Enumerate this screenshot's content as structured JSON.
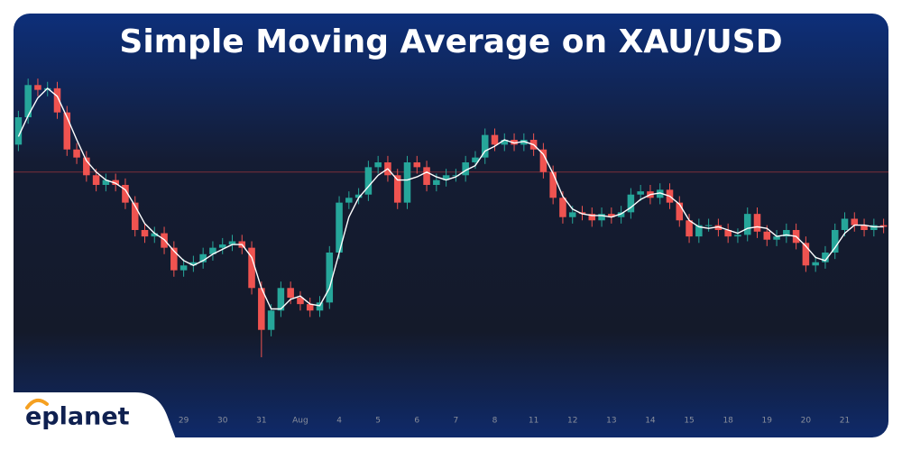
{
  "chart_data": {
    "type": "candlestick",
    "title": "Simple Moving Average on XAU/USD",
    "logo": "eplanet",
    "categories": [
      null,
      null,
      null,
      null,
      null,
      null,
      null,
      null,
      null,
      null,
      null,
      null,
      null,
      null,
      null,
      null,
      null,
      "29",
      null,
      null,
      null,
      "30",
      null,
      null,
      null,
      "31",
      null,
      null,
      null,
      "Aug",
      null,
      null,
      null,
      "4",
      null,
      null,
      null,
      "5",
      null,
      null,
      null,
      "6",
      null,
      null,
      null,
      "7",
      null,
      null,
      null,
      "8",
      null,
      null,
      null,
      "11",
      null,
      null,
      null,
      "12",
      null,
      null,
      null,
      "13",
      null,
      null,
      null,
      "14",
      null,
      null,
      null,
      "15",
      null,
      null,
      null,
      "18",
      null,
      null,
      null,
      "19",
      null,
      null,
      null,
      "20",
      null,
      null,
      null,
      "21",
      null,
      null,
      null,
      null
    ],
    "open": [
      3415,
      3432,
      3452,
      3449,
      3450,
      3435,
      3412,
      3407,
      3396,
      3390,
      3393,
      3390,
      3379,
      3362,
      3358,
      3360,
      3351,
      3337,
      3340,
      3342,
      3347,
      3351,
      3353,
      3355,
      3351,
      3326,
      3300,
      3312,
      3326,
      3320,
      3316,
      3312,
      3317,
      3348,
      3379,
      3382,
      3384,
      3401,
      3404,
      3396,
      3379,
      3404,
      3401,
      3390,
      3393,
      3396,
      3396,
      3404,
      3407,
      3421,
      3415,
      3418,
      3415,
      3418,
      3412,
      3398,
      3382,
      3370,
      3373,
      3372,
      3368,
      3372,
      3370,
      3373,
      3384,
      3386,
      3382,
      3387,
      3379,
      3368,
      3358,
      3365,
      3365,
      3362,
      3358,
      3359,
      3372,
      3361,
      3356,
      3358,
      3362,
      3354,
      3340,
      3342,
      3348,
      3362,
      3369,
      3365,
      3362,
      3365
    ],
    "high": [
      3436,
      3456,
      3456,
      3454,
      3454,
      3439,
      3416,
      3411,
      3400,
      3397,
      3397,
      3394,
      3383,
      3366,
      3364,
      3364,
      3355,
      3344,
      3346,
      3351,
      3355,
      3357,
      3359,
      3359,
      3355,
      3330,
      3316,
      3330,
      3330,
      3324,
      3320,
      3321,
      3352,
      3383,
      3386,
      3388,
      3405,
      3408,
      3408,
      3400,
      3408,
      3408,
      3405,
      3397,
      3400,
      3400,
      3408,
      3411,
      3425,
      3425,
      3422,
      3422,
      3422,
      3422,
      3416,
      3402,
      3386,
      3377,
      3377,
      3376,
      3376,
      3376,
      3377,
      3388,
      3390,
      3390,
      3391,
      3391,
      3383,
      3372,
      3369,
      3369,
      3369,
      3366,
      3363,
      3376,
      3376,
      3365,
      3362,
      3366,
      3366,
      3358,
      3346,
      3352,
      3366,
      3373,
      3373,
      3369,
      3369,
      3369
    ],
    "low": [
      3411,
      3428,
      3445,
      3445,
      3431,
      3408,
      3403,
      3392,
      3386,
      3386,
      3386,
      3375,
      3358,
      3354,
      3354,
      3347,
      3333,
      3333,
      3336,
      3338,
      3343,
      3347,
      3349,
      3347,
      3322,
      3283,
      3296,
      3308,
      3316,
      3312,
      3308,
      3308,
      3313,
      3344,
      3375,
      3378,
      3380,
      3397,
      3392,
      3375,
      3375,
      3397,
      3386,
      3386,
      3389,
      3392,
      3392,
      3400,
      3403,
      3411,
      3411,
      3411,
      3411,
      3408,
      3394,
      3378,
      3366,
      3366,
      3368,
      3364,
      3364,
      3366,
      3366,
      3369,
      3380,
      3378,
      3378,
      3375,
      3364,
      3354,
      3354,
      3361,
      3358,
      3354,
      3354,
      3355,
      3357,
      3352,
      3352,
      3354,
      3350,
      3336,
      3336,
      3338,
      3344,
      3358,
      3361,
      3358,
      3358,
      3360
    ],
    "close": [
      3432,
      3452,
      3449,
      3450,
      3435,
      3412,
      3407,
      3396,
      3390,
      3393,
      3390,
      3379,
      3362,
      3358,
      3360,
      3351,
      3337,
      3340,
      3342,
      3347,
      3351,
      3353,
      3355,
      3351,
      3326,
      3300,
      3312,
      3326,
      3320,
      3316,
      3312,
      3317,
      3348,
      3379,
      3382,
      3384,
      3401,
      3404,
      3396,
      3379,
      3404,
      3401,
      3390,
      3393,
      3396,
      3396,
      3404,
      3407,
      3421,
      3415,
      3418,
      3415,
      3418,
      3412,
      3398,
      3382,
      3370,
      3373,
      3372,
      3368,
      3372,
      3370,
      3373,
      3384,
      3386,
      3382,
      3387,
      3379,
      3368,
      3358,
      3365,
      3365,
      3362,
      3358,
      3359,
      3372,
      3361,
      3356,
      3358,
      3362,
      3354,
      3340,
      3342,
      3348,
      3362,
      3369,
      3365,
      3362,
      3365,
      3364
    ],
    "sma": [
      3420,
      3433,
      3444,
      3450,
      3445,
      3432,
      3418,
      3405,
      3398,
      3393,
      3391,
      3387,
      3377,
      3366,
      3360,
      3356,
      3349,
      3343,
      3340,
      3343,
      3347,
      3350,
      3353,
      3353,
      3345,
      3326,
      3313,
      3313,
      3319,
      3321,
      3316,
      3315,
      3326,
      3348,
      3370,
      3382,
      3389,
      3396,
      3400,
      3393,
      3393,
      3395,
      3398,
      3395,
      3393,
      3395,
      3399,
      3402,
      3411,
      3414,
      3418,
      3416,
      3417,
      3415,
      3409,
      3397,
      3383,
      3375,
      3372,
      3371,
      3371,
      3370,
      3372,
      3376,
      3381,
      3384,
      3385,
      3383,
      3378,
      3368,
      3364,
      3363,
      3364,
      3362,
      3360,
      3363,
      3364,
      3363,
      3358,
      3359,
      3358,
      3352,
      3345,
      3343,
      3351,
      3360,
      3365,
      3365,
      3364,
      3364
    ],
    "up_color": "#26a69a",
    "down_color": "#ef5350",
    "sma_color": "#ffffff",
    "reference_line": 3398,
    "reference_color": "#7a2f3a",
    "ylim": [
      3250,
      3460
    ]
  }
}
